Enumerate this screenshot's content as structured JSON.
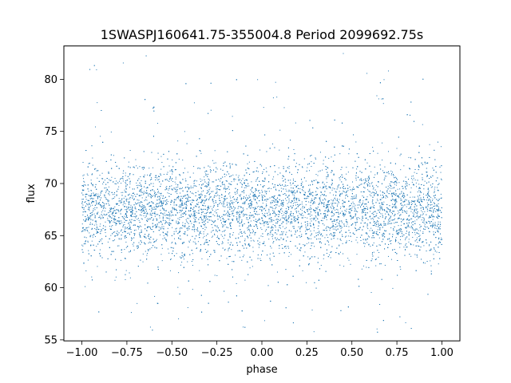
{
  "chart_data": {
    "type": "scatter",
    "title": "1SWASPJ160641.75-355004.8 Period 2099692.75s",
    "xlabel": "phase",
    "ylabel": "flux",
    "xlim": [
      -1.1,
      1.1
    ],
    "ylim": [
      54.9,
      83.2
    ],
    "xticks": [
      -1.0,
      -0.75,
      -0.5,
      -0.25,
      0.0,
      0.25,
      0.5,
      0.75,
      1.0
    ],
    "xtick_labels": [
      "−1.00",
      "−0.75",
      "−0.50",
      "−0.25",
      "0.00",
      "0.25",
      "0.50",
      "0.75",
      "1.00"
    ],
    "yticks": [
      55,
      60,
      65,
      70,
      75,
      80
    ],
    "ytick_labels": [
      "55",
      "60",
      "65",
      "70",
      "75",
      "80"
    ],
    "grid": false,
    "legend": "none",
    "marker_color": "#1f77b4",
    "series": [
      {
        "x_range": [
          -1.0,
          1.0
        ],
        "point_count": 9000,
        "band_center": 68.8,
        "band_core_range": [
          62.0,
          76.0
        ],
        "full_range": [
          55.5,
          82.5
        ],
        "mirror_symmetric": true,
        "profile_x": [
          -1.0,
          -0.95,
          -0.9,
          -0.85,
          -0.8,
          -0.75,
          -0.7,
          -0.65,
          -0.6,
          -0.55,
          -0.5,
          -0.45,
          -0.4,
          -0.35,
          -0.3,
          -0.25,
          -0.2,
          -0.15,
          -0.1,
          -0.05,
          0.0
        ],
        "profile_center": [
          68.2,
          67.6,
          68.0,
          68.8,
          69.2,
          69.4,
          69.8,
          70.2,
          69.6,
          69.2,
          69.0,
          68.6,
          68.4,
          69.2,
          70.0,
          70.4,
          69.8,
          68.8,
          68.2,
          67.6,
          67.4
        ],
        "profile_spread": [
          2.6,
          2.8,
          2.4,
          2.2,
          2.4,
          2.3,
          2.4,
          2.6,
          2.3,
          2.2,
          2.1,
          2.2,
          2.1,
          2.4,
          2.6,
          2.8,
          2.5,
          2.3,
          2.3,
          2.4,
          2.2
        ]
      }
    ]
  }
}
